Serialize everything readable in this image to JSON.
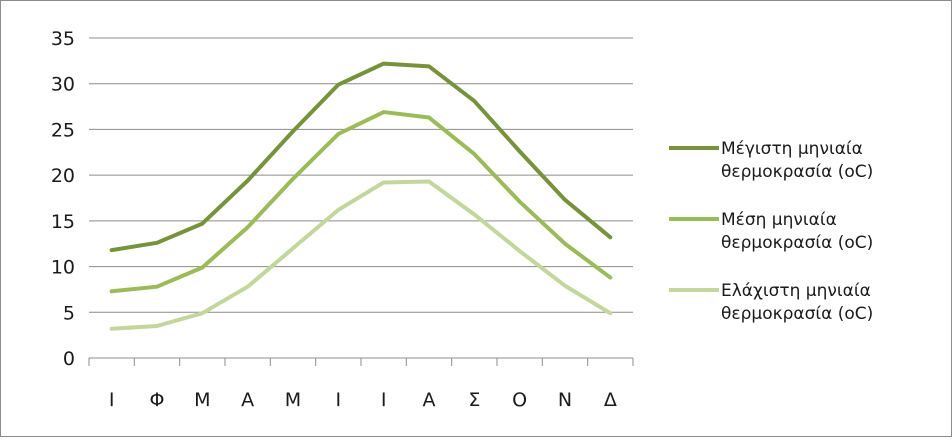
{
  "chart_data": {
    "type": "line",
    "categories": [
      "Ι",
      "Φ",
      "Μ",
      "Α",
      "Μ",
      "Ι",
      "Ι",
      "Α",
      "Σ",
      "Ο",
      "Ν",
      "Δ"
    ],
    "ylim": [
      0,
      35
    ],
    "yticks": [
      0,
      5,
      10,
      15,
      20,
      25,
      30,
      35
    ],
    "grid": true,
    "legend_position": "right",
    "series": [
      {
        "name_lines": [
          "Μέγιστη μηνιαία",
          "θερμοκρασία (oC)"
        ],
        "color": "#76933c",
        "values": [
          11.8,
          12.6,
          14.7,
          19.4,
          24.8,
          29.9,
          32.2,
          31.9,
          28.1,
          22.6,
          17.3,
          13.2
        ]
      },
      {
        "name_lines": [
          "Μέση μηνιαία",
          "θερμοκρασία (oC)"
        ],
        "color": "#9bbb59",
        "values": [
          7.3,
          7.8,
          9.9,
          14.3,
          19.6,
          24.5,
          26.9,
          26.3,
          22.3,
          17.1,
          12.5,
          8.8
        ]
      },
      {
        "name_lines": [
          "Ελάχιστη μηνιαία",
          "θερμοκρασία (oC)"
        ],
        "color": "#c3d69b",
        "values": [
          3.2,
          3.5,
          4.9,
          7.8,
          12.0,
          16.2,
          19.2,
          19.3,
          15.7,
          11.7,
          7.9,
          4.9
        ]
      }
    ]
  }
}
